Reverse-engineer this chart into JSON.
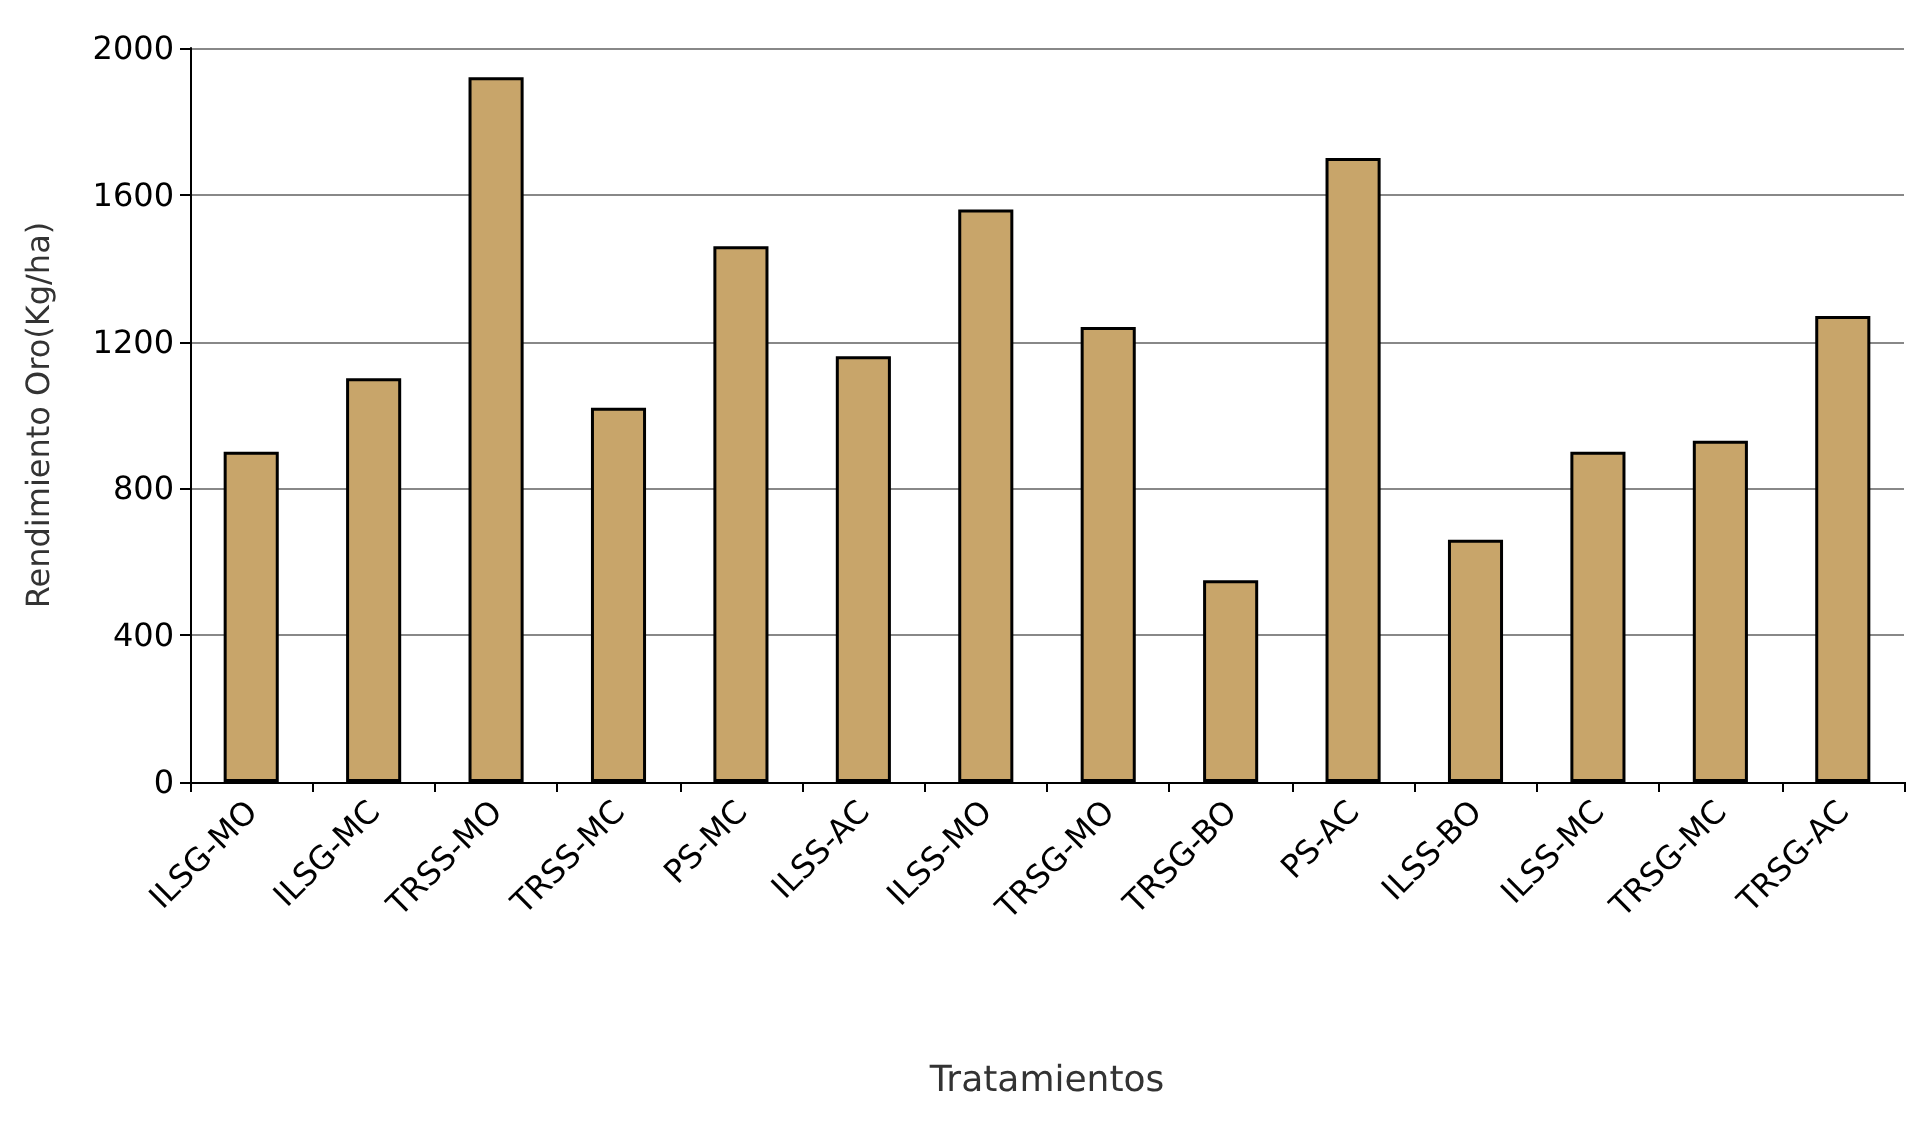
{
  "chart_data": {
    "type": "bar",
    "xlabel": "Tratamientos",
    "ylabel": "Rendimiento Oro(Kg/ha)",
    "categories": [
      "ILSG-MO",
      "ILSG-MC",
      "TRSS-MO",
      "TRSS-MC",
      "PS-MC",
      "ILSS-AC",
      "ILSS-MO",
      "TRSG-MO",
      "TRSG-BO",
      "PS-AC",
      "ILSS-BO",
      "ILSS-MC",
      "TRSG-MC",
      "TRSG-AC"
    ],
    "values": [
      900,
      1100,
      1920,
      1020,
      1460,
      1160,
      1560,
      1240,
      550,
      1700,
      660,
      900,
      930,
      1270
    ],
    "color": "#c8a56a",
    "ylim": [
      0,
      2000
    ],
    "yticks": [
      0,
      400,
      800,
      1200,
      1600,
      2000
    ],
    "grid": "y"
  }
}
